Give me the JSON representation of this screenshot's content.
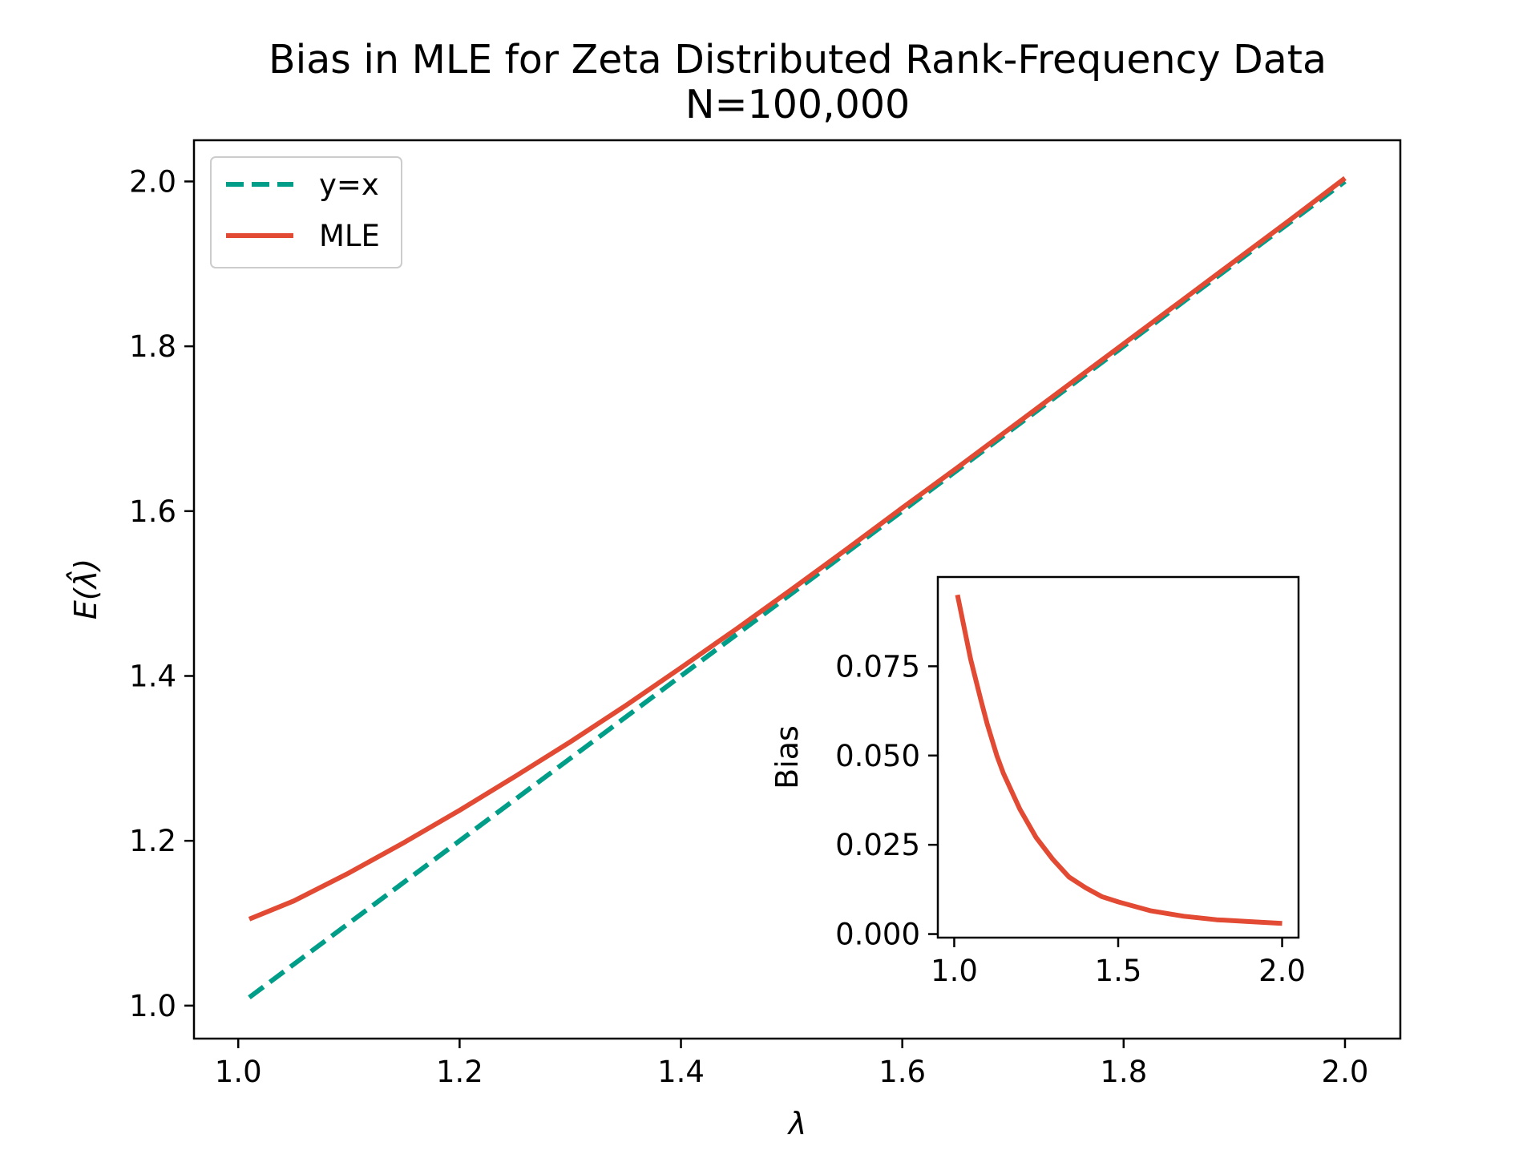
{
  "colors": {
    "mle": "#e24a33",
    "identity": "#009e88",
    "axes": "#000000",
    "background": "#ffffff"
  },
  "chart_data": [
    {
      "type": "line",
      "title": "Bias in MLE for Zeta Distributed Rank-Frequency Data",
      "subtitle": "N=100,000",
      "xlabel": "λ",
      "ylabel": "E(λ̂)",
      "xlim": [
        0.96,
        2.05
      ],
      "ylim": [
        0.96,
        2.05
      ],
      "x_ticks": [
        1.0,
        1.2,
        1.4,
        1.6,
        1.8,
        2.0
      ],
      "x_tick_labels": [
        "1.0",
        "1.2",
        "1.4",
        "1.6",
        "1.8",
        "2.0"
      ],
      "y_ticks": [
        1.0,
        1.2,
        1.4,
        1.6,
        1.8,
        2.0
      ],
      "y_tick_labels": [
        "1.0",
        "1.2",
        "1.4",
        "1.6",
        "1.8",
        "2.0"
      ],
      "legend": {
        "position": "top-left",
        "entries": [
          "y=x",
          "MLE"
        ]
      },
      "series": [
        {
          "name": "y=x",
          "style": "dashed",
          "color": "#009e88",
          "x": [
            1.01,
            2.0
          ],
          "y": [
            1.01,
            2.0
          ]
        },
        {
          "name": "MLE",
          "style": "solid",
          "color": "#e24a33",
          "x": [
            1.01,
            1.05,
            1.1,
            1.15,
            1.2,
            1.25,
            1.3,
            1.35,
            1.4,
            1.45,
            1.5,
            1.55,
            1.6,
            1.65,
            1.7,
            1.75,
            1.8,
            1.85,
            1.9,
            1.95,
            2.0
          ],
          "y": [
            1.105,
            1.127,
            1.161,
            1.198,
            1.237,
            1.278,
            1.32,
            1.364,
            1.41,
            1.457,
            1.505,
            1.554,
            1.604,
            1.653,
            1.703,
            1.753,
            1.803,
            1.853,
            1.903,
            1.953,
            2.004
          ]
        }
      ]
    },
    {
      "type": "line",
      "title": "",
      "xlabel": "",
      "ylabel": "Bias",
      "xlim": [
        0.95,
        2.05
      ],
      "ylim": [
        -0.001,
        0.1
      ],
      "x_ticks": [
        1.0,
        1.5,
        2.0
      ],
      "x_tick_labels": [
        "1.0",
        "1.5",
        "2.0"
      ],
      "y_ticks": [
        0.0,
        0.025,
        0.05,
        0.075
      ],
      "y_tick_labels": [
        "0.000",
        "0.025",
        "0.050",
        "0.075"
      ],
      "series": [
        {
          "name": "Bias",
          "style": "solid",
          "color": "#e24a33",
          "x": [
            1.01,
            1.03,
            1.05,
            1.08,
            1.1,
            1.13,
            1.15,
            1.2,
            1.25,
            1.3,
            1.35,
            1.4,
            1.45,
            1.5,
            1.6,
            1.7,
            1.8,
            1.9,
            2.0
          ],
          "y": [
            0.095,
            0.086,
            0.077,
            0.066,
            0.059,
            0.05,
            0.045,
            0.035,
            0.027,
            0.021,
            0.016,
            0.013,
            0.0105,
            0.009,
            0.0065,
            0.005,
            0.004,
            0.0035,
            0.003
          ]
        }
      ]
    }
  ]
}
